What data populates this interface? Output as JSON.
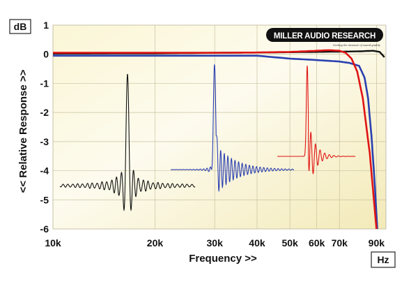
{
  "chart_data": {
    "type": "line",
    "xlabel": "Frequency >>",
    "ylabel": "<< Relative Response >>",
    "x_unit": "Hz",
    "y_unit": "dB",
    "x_scale": "log",
    "xlim": [
      10000,
      96000
    ],
    "ylim": [
      -6,
      1
    ],
    "grid": true,
    "legend": "none",
    "x_ticks": [
      {
        "value": 10000,
        "label": "10k"
      },
      {
        "value": 20000,
        "label": "20k"
      },
      {
        "value": 30000,
        "label": "30k"
      },
      {
        "value": 40000,
        "label": "40k"
      },
      {
        "value": 50000,
        "label": "50k"
      },
      {
        "value": 60000,
        "label": "60k"
      },
      {
        "value": 70000,
        "label": "70k"
      },
      {
        "value": 90000,
        "label": "90k"
      }
    ],
    "y_ticks": [
      {
        "value": 1,
        "label": "1"
      },
      {
        "value": 0,
        "label": "0"
      },
      {
        "value": -1,
        "label": "-1"
      },
      {
        "value": -2,
        "label": "-2"
      },
      {
        "value": -3,
        "label": "-3"
      },
      {
        "value": -4,
        "label": "-4"
      },
      {
        "value": -5,
        "label": "-5"
      },
      {
        "value": -6,
        "label": "-6"
      }
    ],
    "series": [
      {
        "color": "#111111",
        "x": [
          10000,
          20000,
          30000,
          40000,
          50000,
          60000,
          70000,
          80000,
          88000,
          92000,
          95000
        ],
        "y": [
          0.02,
          0.03,
          0.05,
          0.06,
          0.07,
          0.08,
          0.09,
          0.1,
          0.12,
          0.08,
          -0.1
        ]
      },
      {
        "color": "#e01414",
        "x": [
          10000,
          20000,
          30000,
          40000,
          50000,
          60000,
          65000,
          70000,
          73000,
          76000,
          79000,
          82000,
          86000,
          90000
        ],
        "y": [
          0.05,
          0.05,
          0.05,
          0.06,
          0.08,
          0.12,
          0.14,
          0.12,
          0.05,
          -0.15,
          -0.6,
          -1.5,
          -3.4,
          -6
        ]
      },
      {
        "color": "#2a3fb0",
        "x": [
          10000,
          20000,
          30000,
          40000,
          50000,
          60000,
          70000,
          75000,
          80000,
          83000,
          85000,
          87000,
          89000,
          90500
        ],
        "y": [
          -0.05,
          -0.05,
          -0.05,
          -0.05,
          -0.15,
          -0.2,
          -0.25,
          -0.3,
          -0.4,
          -0.8,
          -1.5,
          -2.8,
          -4.5,
          -6
        ]
      }
    ],
    "insets": [
      {
        "color": "#111111",
        "description_of": "impulse"
      },
      {
        "color": "#2a3fb0",
        "description_of": "impulse"
      },
      {
        "color": "#e01414",
        "description_of": "impulse"
      }
    ]
  },
  "logo": {
    "brand": "MILLER AUDIO RESEARCH",
    "tagline": "Getting the measure of sound quality"
  }
}
